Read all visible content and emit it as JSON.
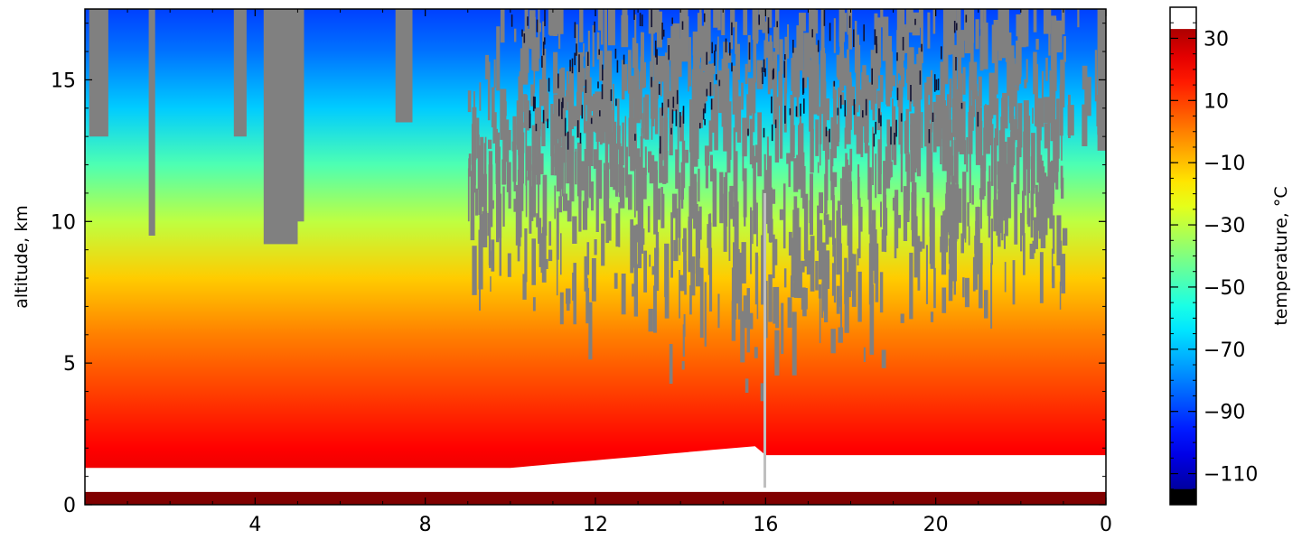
{
  "chart_data": {
    "type": "heatmap",
    "title": "",
    "xlabel": "",
    "ylabel": "altitude, km",
    "x_ticks": [
      "4",
      "8",
      "12",
      "16",
      "20",
      "0"
    ],
    "x_tick_hours": [
      4,
      8,
      12,
      16,
      20,
      24
    ],
    "xlim_hours": [
      0,
      24
    ],
    "y_ticks": [
      0,
      5,
      10,
      15
    ],
    "ylim": [
      0,
      17.5
    ],
    "colorbar": {
      "label": "temperature, °C",
      "ticks": [
        "30",
        "10",
        "−10",
        "−30",
        "−50",
        "−70",
        "−90",
        "−110"
      ],
      "tick_values": [
        30,
        10,
        -10,
        -30,
        -50,
        -70,
        -90,
        -110
      ],
      "range": [
        -120,
        40
      ],
      "colormap": "jet"
    },
    "mask_colors": {
      "no_data": "#808080",
      "surface": "#ffffff"
    },
    "temperature_profile": [
      {
        "altitude_km": 0.5,
        "temp_c": 25
      },
      {
        "altitude_km": 2.0,
        "temp_c": 20
      },
      {
        "altitude_km": 4.0,
        "temp_c": 10
      },
      {
        "altitude_km": 6.0,
        "temp_c": 0
      },
      {
        "altitude_km": 8.0,
        "temp_c": -12
      },
      {
        "altitude_km": 10.0,
        "temp_c": -30
      },
      {
        "altitude_km": 12.0,
        "temp_c": -48
      },
      {
        "altitude_km": 14.0,
        "temp_c": -68
      },
      {
        "altitude_km": 16.0,
        "temp_c": -82
      },
      {
        "altitude_km": 17.5,
        "temp_c": -90
      }
    ]
  }
}
